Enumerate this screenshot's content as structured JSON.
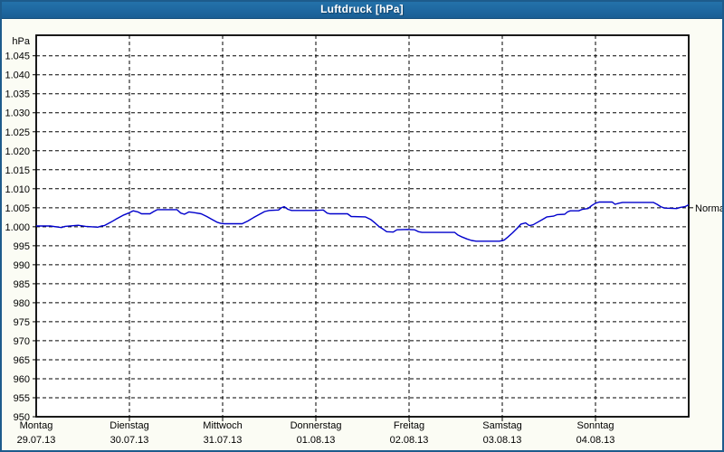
{
  "window": {
    "title": "Luftdruck [hPa]"
  },
  "colors": {
    "frame": "#1D5B8C",
    "titlebar_top": "#2574AC",
    "titlebar_bottom": "#1A5E94",
    "title_text": "#FFFFFF",
    "background": "#FBFCF4",
    "plot_background": "#FFFFFF",
    "grid": "#000000",
    "axis_text": "#000000",
    "series": "#0000CC"
  },
  "chart_data": {
    "type": "line",
    "title": "Luftdruck [hPa]",
    "y_unit_label": "hPa",
    "ylim": [
      950,
      1050.4
    ],
    "ytick_step": 5,
    "grid": "dashed",
    "yticks": [
      {
        "v": 1045,
        "label": "1.045"
      },
      {
        "v": 1040,
        "label": "1.040"
      },
      {
        "v": 1035,
        "label": "1.035"
      },
      {
        "v": 1030,
        "label": "1.030"
      },
      {
        "v": 1025,
        "label": "1.025"
      },
      {
        "v": 1020,
        "label": "1.020"
      },
      {
        "v": 1015,
        "label": "1.015"
      },
      {
        "v": 1010,
        "label": "1.010"
      },
      {
        "v": 1005,
        "label": "1.005"
      },
      {
        "v": 1000,
        "label": "1.000"
      },
      {
        "v": 995,
        "label": "995"
      },
      {
        "v": 990,
        "label": "990"
      },
      {
        "v": 985,
        "label": "985"
      },
      {
        "v": 980,
        "label": "980"
      },
      {
        "v": 975,
        "label": "975"
      },
      {
        "v": 970,
        "label": "970"
      },
      {
        "v": 965,
        "label": "965"
      },
      {
        "v": 960,
        "label": "960"
      },
      {
        "v": 955,
        "label": "955"
      },
      {
        "v": 950,
        "label": "950"
      }
    ],
    "days": [
      {
        "name": "Montag",
        "date": "29.07.13"
      },
      {
        "name": "Dienstag",
        "date": "30.07.13"
      },
      {
        "name": "Mittwoch",
        "date": "31.07.13"
      },
      {
        "name": "Donnerstag",
        "date": "01.08.13"
      },
      {
        "name": "Freitag",
        "date": "02.08.13"
      },
      {
        "name": "Samstag",
        "date": "03.08.13"
      },
      {
        "name": "Sonntag",
        "date": "04.08.13"
      }
    ],
    "normal_marker": {
      "label": "Normal",
      "value": 1005
    },
    "points": [
      [
        0.0,
        1000.2
      ],
      [
        0.15,
        1000.2
      ],
      [
        0.27,
        999.8
      ],
      [
        0.31,
        1000.1
      ],
      [
        0.45,
        1000.4
      ],
      [
        0.53,
        1000.1
      ],
      [
        0.66,
        999.9
      ],
      [
        0.7,
        1000.2
      ],
      [
        0.73,
        1000.3
      ],
      [
        0.8,
        1001.2
      ],
      [
        0.87,
        1002.2
      ],
      [
        0.94,
        1003.1
      ],
      [
        1.0,
        1003.7
      ],
      [
        1.04,
        1004.2
      ],
      [
        1.09,
        1003.9
      ],
      [
        1.13,
        1003.4
      ],
      [
        1.22,
        1003.4
      ],
      [
        1.26,
        1004.0
      ],
      [
        1.3,
        1004.5
      ],
      [
        1.51,
        1004.5
      ],
      [
        1.55,
        1003.6
      ],
      [
        1.59,
        1003.3
      ],
      [
        1.64,
        1003.9
      ],
      [
        1.7,
        1003.7
      ],
      [
        1.77,
        1003.4
      ],
      [
        1.83,
        1002.7
      ],
      [
        1.88,
        1002.0
      ],
      [
        1.94,
        1001.2
      ],
      [
        1.98,
        1000.9
      ],
      [
        2.02,
        1000.8
      ],
      [
        2.21,
        1000.8
      ],
      [
        2.27,
        1001.5
      ],
      [
        2.33,
        1002.4
      ],
      [
        2.39,
        1003.2
      ],
      [
        2.45,
        1004.0
      ],
      [
        2.5,
        1004.3
      ],
      [
        2.6,
        1004.4
      ],
      [
        2.63,
        1005.0
      ],
      [
        2.66,
        1005.3
      ],
      [
        2.7,
        1004.6
      ],
      [
        2.74,
        1004.3
      ],
      [
        2.99,
        1004.3
      ],
      [
        3.08,
        1004.4
      ],
      [
        3.12,
        1003.6
      ],
      [
        3.15,
        1003.4
      ],
      [
        3.34,
        1003.4
      ],
      [
        3.38,
        1002.7
      ],
      [
        3.53,
        1002.6
      ],
      [
        3.59,
        1001.9
      ],
      [
        3.64,
        1000.9
      ],
      [
        3.68,
        1000.0
      ],
      [
        3.72,
        999.4
      ],
      [
        3.76,
        998.7
      ],
      [
        3.83,
        998.6
      ],
      [
        3.87,
        999.2
      ],
      [
        3.98,
        999.3
      ],
      [
        4.06,
        999.2
      ],
      [
        4.1,
        998.7
      ],
      [
        4.14,
        998.5
      ],
      [
        4.49,
        998.5
      ],
      [
        4.52,
        997.9
      ],
      [
        4.56,
        997.4
      ],
      [
        4.62,
        996.8
      ],
      [
        4.67,
        996.4
      ],
      [
        4.72,
        996.2
      ],
      [
        4.97,
        996.2
      ],
      [
        5.02,
        996.5
      ],
      [
        5.06,
        997.3
      ],
      [
        5.11,
        998.4
      ],
      [
        5.16,
        999.6
      ],
      [
        5.2,
        1000.7
      ],
      [
        5.25,
        1001.0
      ],
      [
        5.29,
        1000.3
      ],
      [
        5.33,
        1000.5
      ],
      [
        5.38,
        1001.2
      ],
      [
        5.43,
        1001.9
      ],
      [
        5.48,
        1002.6
      ],
      [
        5.55,
        1002.8
      ],
      [
        5.59,
        1003.2
      ],
      [
        5.67,
        1003.3
      ],
      [
        5.7,
        1003.9
      ],
      [
        5.73,
        1004.2
      ],
      [
        5.82,
        1004.2
      ],
      [
        5.86,
        1004.6
      ],
      [
        5.92,
        1004.8
      ],
      [
        5.96,
        1005.6
      ],
      [
        6.0,
        1006.2
      ],
      [
        6.04,
        1006.5
      ],
      [
        6.18,
        1006.5
      ],
      [
        6.21,
        1005.9
      ],
      [
        6.25,
        1006.2
      ],
      [
        6.29,
        1006.4
      ],
      [
        6.62,
        1006.4
      ],
      [
        6.66,
        1005.9
      ],
      [
        6.7,
        1005.3
      ],
      [
        6.74,
        1004.9
      ],
      [
        6.87,
        1004.8
      ],
      [
        6.91,
        1005.1
      ],
      [
        6.96,
        1005.3
      ],
      [
        7.0,
        1005.8
      ]
    ]
  }
}
